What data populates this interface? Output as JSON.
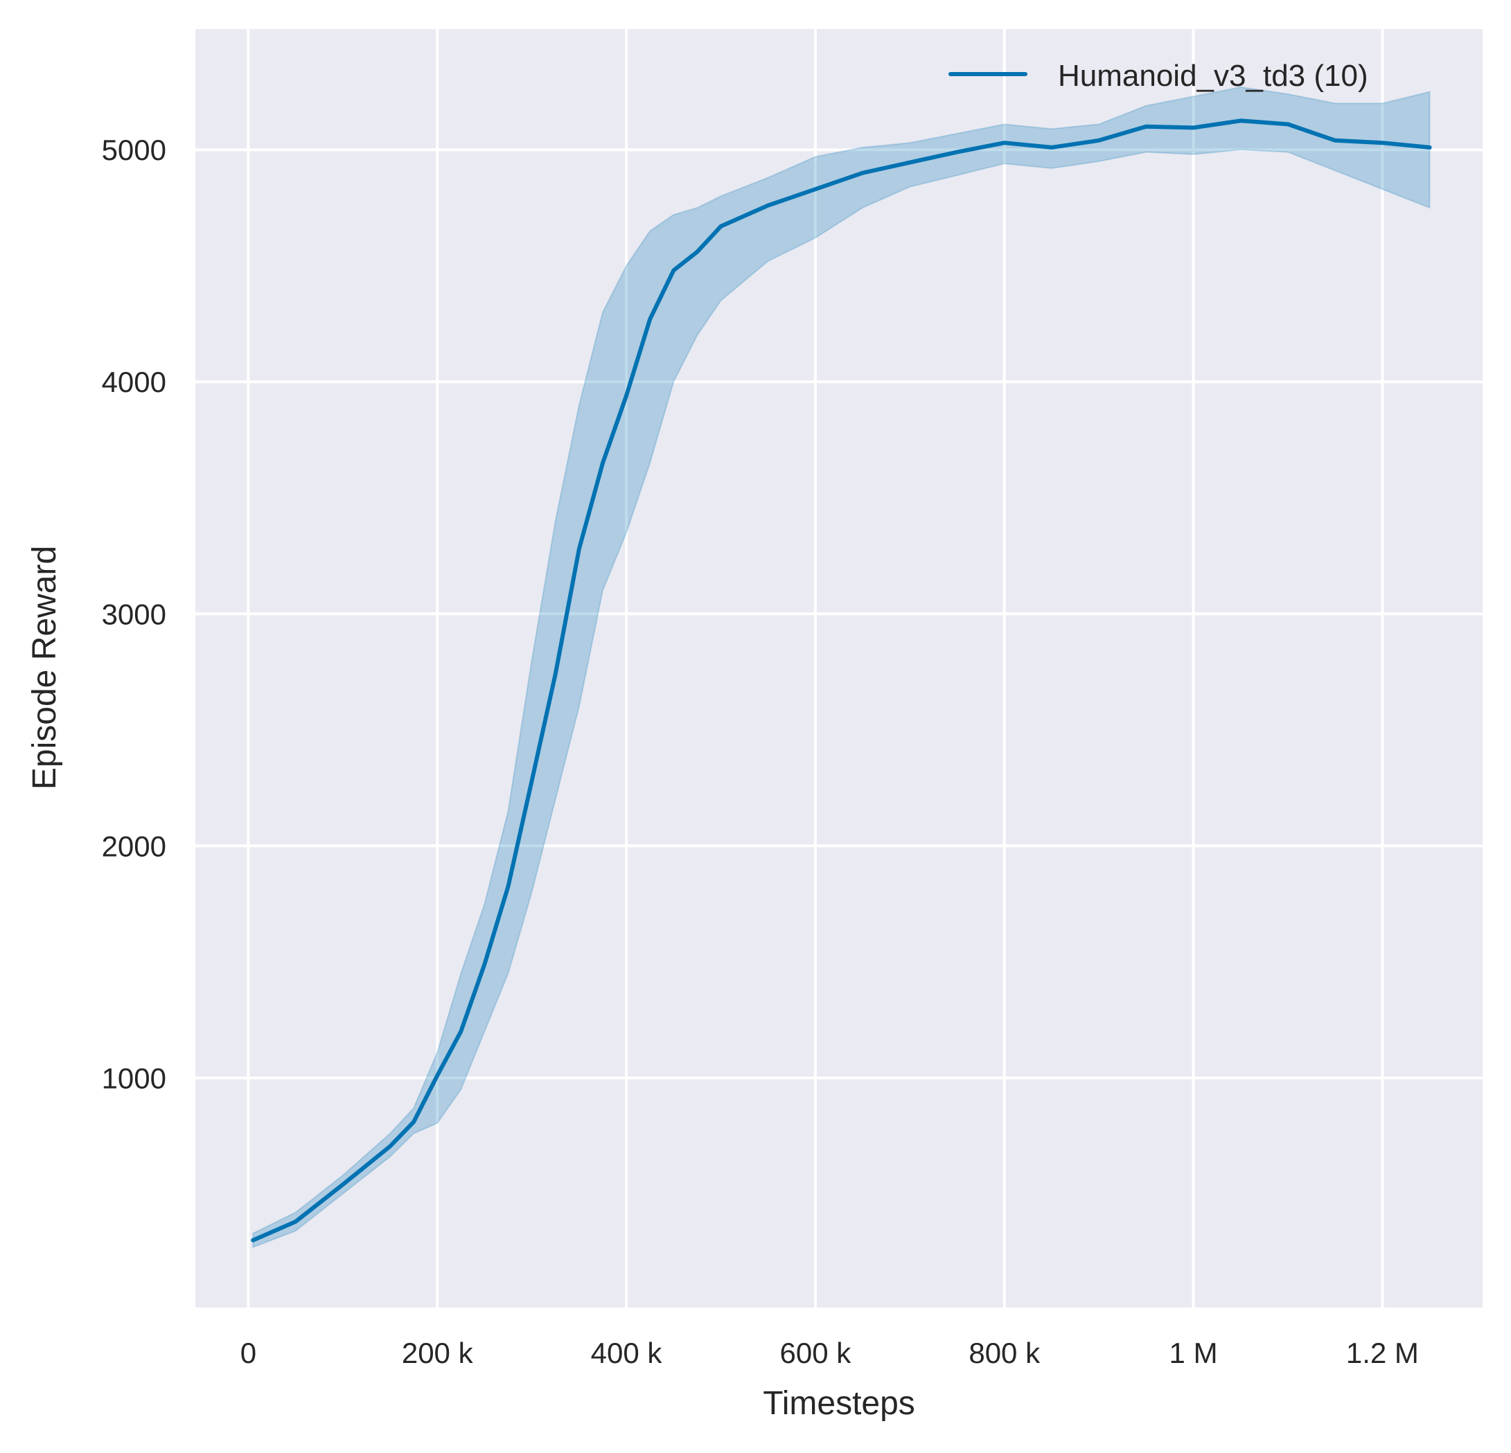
{
  "chart_data": {
    "type": "line",
    "xlabel": "Timesteps",
    "ylabel": "Episode Reward",
    "xlim": [
      -56000,
      1306000
    ],
    "ylim": [
      10,
      5520
    ],
    "xticks": [
      0,
      200000,
      400000,
      600000,
      800000,
      1000000,
      1200000
    ],
    "xtick_labels": [
      "0",
      "200 k",
      "400 k",
      "600 k",
      "800 k",
      "1 M",
      "1.2 M"
    ],
    "yticks": [
      1000,
      2000,
      3000,
      4000,
      5000
    ],
    "ytick_labels": [
      "1000",
      "2000",
      "3000",
      "4000",
      "5000"
    ],
    "grid": true,
    "background": "#eaeaf2",
    "legend_placement": "top-right",
    "series": [
      {
        "name": "Humanoid_v3_td3 (10)",
        "color": "#0072b2",
        "x": [
          5000,
          50000,
          100000,
          150000,
          175000,
          200000,
          225000,
          250000,
          275000,
          300000,
          325000,
          350000,
          375000,
          400000,
          425000,
          450000,
          475000,
          500000,
          550000,
          600000,
          650000,
          700000,
          750000,
          800000,
          850000,
          900000,
          950000,
          1000000,
          1050000,
          1100000,
          1150000,
          1200000,
          1250000
        ],
        "mean": [
          300,
          380,
          540,
          705,
          810,
          1010,
          1200,
          1490,
          1825,
          2280,
          2740,
          3280,
          3650,
          3940,
          4270,
          4480,
          4560,
          4670,
          4760,
          4830,
          4900,
          4945,
          4990,
          5030,
          5010,
          5040,
          5100,
          5095,
          5125,
          5110,
          5040,
          5030,
          5010
        ],
        "lower": [
          270,
          340,
          500,
          660,
          760,
          805,
          950,
          1200,
          1450,
          1800,
          2200,
          2600,
          3100,
          3350,
          3650,
          4000,
          4200,
          4350,
          4520,
          4620,
          4750,
          4840,
          4890,
          4940,
          4920,
          4950,
          4990,
          4980,
          5000,
          4990,
          4910,
          4830,
          4750
        ],
        "upper": [
          330,
          420,
          580,
          760,
          870,
          1110,
          1450,
          1750,
          2150,
          2800,
          3400,
          3900,
          4300,
          4500,
          4650,
          4720,
          4750,
          4800,
          4880,
          4970,
          5010,
          5030,
          5070,
          5110,
          5090,
          5110,
          5190,
          5230,
          5270,
          5240,
          5200,
          5200,
          5250
        ]
      }
    ]
  }
}
